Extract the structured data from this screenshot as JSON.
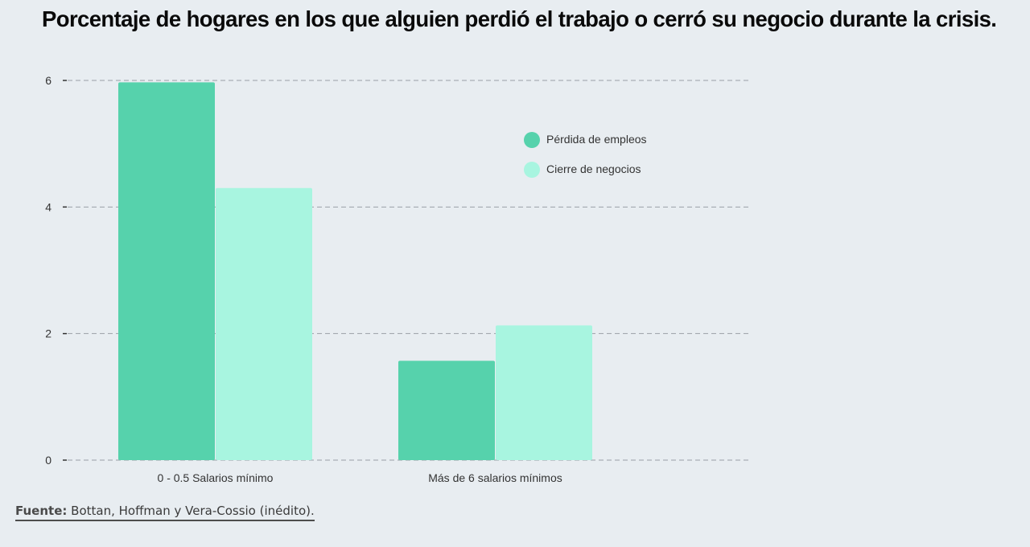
{
  "chart_data": {
    "type": "bar",
    "title": "Porcentaje de hogares en los que alguien perdió el trabajo o cerró su negocio durante la crisis.",
    "categories": [
      "0 - 0.5 Salarios mínimo",
      "Más de 6 salarios mínimos"
    ],
    "series": [
      {
        "name": "Pérdida de empleos",
        "values": [
          5.97,
          1.57
        ],
        "color": "#56d2ac"
      },
      {
        "name": "Cierre de negocios",
        "values": [
          4.3,
          2.13
        ],
        "color": "#a8f5e0"
      }
    ],
    "ylim": [
      0,
      6
    ],
    "yticks": [
      0,
      2,
      4,
      6
    ],
    "grid": true,
    "legend_position": "top-right"
  },
  "source": {
    "label": "Fuente:",
    "text": "Bottan, Hoffman y Vera-Cossio (inédito)."
  }
}
